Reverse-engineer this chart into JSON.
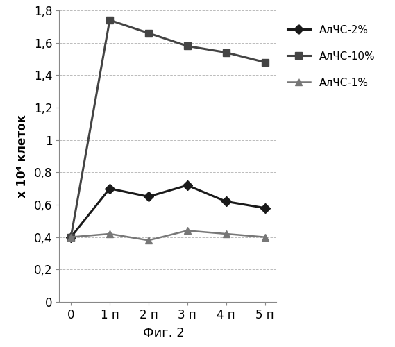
{
  "x_labels": [
    "0",
    "1 п",
    "2 п",
    "3 п",
    "4 п",
    "5 п"
  ],
  "x_values": [
    0,
    1,
    2,
    3,
    4,
    5
  ],
  "series": [
    {
      "label": "АлЧС-2%",
      "values": [
        0.4,
        0.7,
        0.65,
        0.72,
        0.62,
        0.58
      ],
      "color": "#1a1a1a",
      "marker": "D",
      "linewidth": 2.2,
      "markersize": 7
    },
    {
      "label": "АлЧС-10%",
      "values": [
        0.4,
        1.74,
        1.66,
        1.58,
        1.54,
        1.48
      ],
      "color": "#444444",
      "marker": "s",
      "linewidth": 2.2,
      "markersize": 7
    },
    {
      "label": "АлЧС-1%",
      "values": [
        0.4,
        0.42,
        0.38,
        0.44,
        0.42,
        0.4
      ],
      "color": "#777777",
      "marker": "^",
      "linewidth": 1.8,
      "markersize": 7
    }
  ],
  "ylabel": "х 10⁴ клеток",
  "xlabel": "Фиг. 2",
  "ylim": [
    0,
    1.8
  ],
  "yticks": [
    0,
    0.2,
    0.4,
    0.6,
    0.8,
    1.0,
    1.2,
    1.4,
    1.6,
    1.8
  ],
  "ytick_labels": [
    "0",
    "0,2",
    "0,4",
    "0,6",
    "0,8",
    "1",
    "1,2",
    "1,4",
    "1,6",
    "1,8"
  ],
  "background_color": "#ffffff",
  "grid_color": "#bbbbbb",
  "axis_fontsize": 12,
  "legend_fontsize": 11,
  "xlabel_fontsize": 13
}
